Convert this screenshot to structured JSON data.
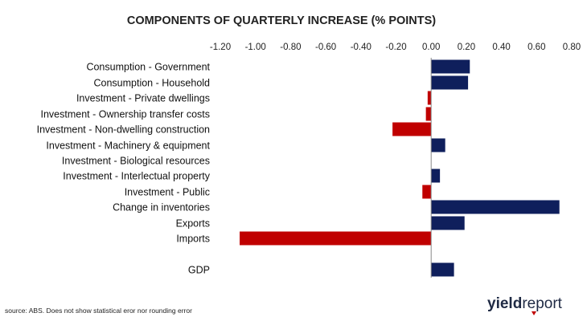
{
  "chart_data": {
    "type": "bar",
    "orientation": "horizontal",
    "title": "COMPONENTS OF QUARTERLY INCREASE (% POINTS)",
    "xlim": [
      -1.2,
      0.8
    ],
    "ticks": [
      "-1.20",
      "-1.00",
      "-0.80",
      "-0.60",
      "-0.40",
      "-0.20",
      "0.00",
      "0.20",
      "0.40",
      "0.60",
      "0.80"
    ],
    "tick_values": [
      -1.2,
      -1.0,
      -0.8,
      -0.6,
      -0.4,
      -0.2,
      0.0,
      0.2,
      0.4,
      0.6,
      0.8
    ],
    "tick_position": "top",
    "grid": false,
    "categories": [
      "Consumption - Government",
      "Consumption - Household",
      "Investment - Private dwellings",
      "Investment - Ownership transfer costs",
      "Investment - Non-dwelling construction",
      "Investment - Machinery & equipment",
      "Investment - Biological resources",
      "Investment - Interlectual property",
      "Investment - Public",
      "Change in inventories",
      "Exports",
      "Imports",
      "GDP"
    ],
    "values": [
      0.22,
      0.21,
      -0.02,
      -0.03,
      -0.22,
      0.08,
      0.0,
      0.05,
      -0.05,
      0.73,
      0.19,
      -1.09,
      0.13
    ],
    "colors": {
      "positive": "#0f1f5c",
      "negative": "#c00000"
    }
  },
  "footer": {
    "source": "source: ABS. Does not show statistical eror nor rounding error"
  },
  "logo": {
    "part1": "yield",
    "part2": "report",
    "accent": "#c00000"
  }
}
